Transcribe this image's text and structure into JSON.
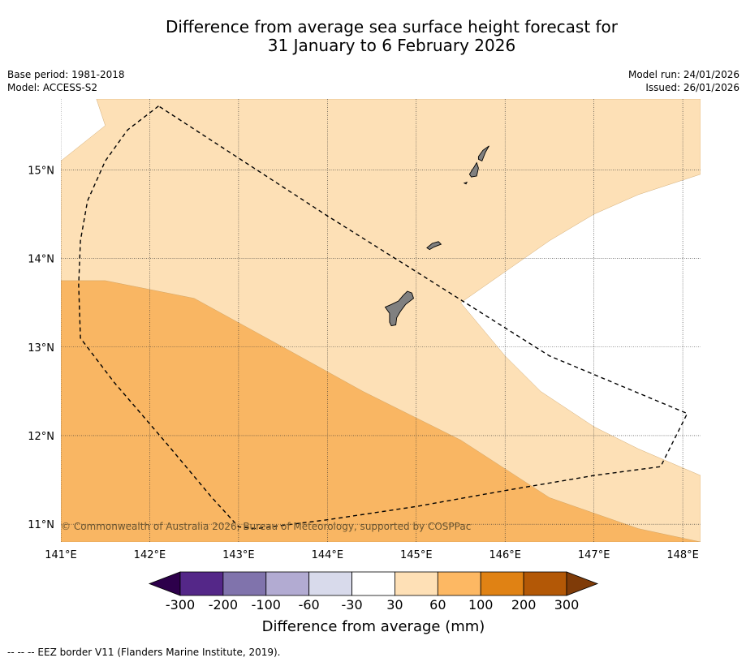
{
  "title": {
    "line1": "Difference from average sea surface height forecast for",
    "line2": "31 January to 6 February 2026"
  },
  "meta_left": {
    "base_period": "Base period: 1981-2018",
    "model": "Model: ACCESS-S2"
  },
  "meta_right": {
    "model_run": "Model run: 24/01/2026",
    "issued": "Issued: 26/01/2026"
  },
  "map": {
    "lon_range": [
      141.0,
      148.2
    ],
    "lat_range": [
      10.8,
      15.8
    ],
    "lat_ticks": [
      {
        "value": 15,
        "label": "15°N"
      },
      {
        "value": 14,
        "label": "14°N"
      },
      {
        "value": 13,
        "label": "13°N"
      },
      {
        "value": 12,
        "label": "12°N"
      },
      {
        "value": 11,
        "label": "11°N"
      }
    ],
    "lon_ticks": [
      {
        "value": 141,
        "label": "141°E"
      },
      {
        "value": 142,
        "label": "142°E"
      },
      {
        "value": 143,
        "label": "143°E"
      },
      {
        "value": 144,
        "label": "144°E"
      },
      {
        "value": 145,
        "label": "145°E"
      },
      {
        "value": 146,
        "label": "146°E"
      },
      {
        "value": 147,
        "label": "147°E"
      },
      {
        "value": 148,
        "label": "148°E"
      }
    ],
    "regions": [
      {
        "name": "anomaly-30-to-60mm-region",
        "color": "#fde0b6",
        "points": [
          [
            141.0,
            15.1
          ],
          [
            141.5,
            15.5
          ],
          [
            141.4,
            15.8
          ],
          [
            148.2,
            15.8
          ],
          [
            148.2,
            14.95
          ],
          [
            147.5,
            14.72
          ],
          [
            147.0,
            14.5
          ],
          [
            146.5,
            14.2
          ],
          [
            145.5,
            13.5
          ],
          [
            146.0,
            12.9
          ],
          [
            146.4,
            12.5
          ],
          [
            147.0,
            12.1
          ],
          [
            147.5,
            11.85
          ],
          [
            148.2,
            11.55
          ],
          [
            148.2,
            10.8
          ],
          [
            141.0,
            10.8
          ]
        ]
      },
      {
        "name": "anomaly-60-to-100mm-region",
        "color": "#f9b663",
        "points": [
          [
            141.0,
            13.75
          ],
          [
            141.5,
            13.75
          ],
          [
            142.5,
            13.55
          ],
          [
            143.5,
            13.0
          ],
          [
            144.4,
            12.5
          ],
          [
            145.5,
            11.95
          ],
          [
            146.5,
            11.3
          ],
          [
            147.5,
            10.95
          ],
          [
            148.2,
            10.8
          ],
          [
            141.0,
            10.8
          ]
        ]
      }
    ],
    "islands": [
      {
        "name": "guam-island",
        "points": [
          [
            144.65,
            13.45
          ],
          [
            144.72,
            13.48
          ],
          [
            144.8,
            13.52
          ],
          [
            144.85,
            13.58
          ],
          [
            144.9,
            13.63
          ],
          [
            144.95,
            13.61
          ],
          [
            144.97,
            13.55
          ],
          [
            144.88,
            13.48
          ],
          [
            144.82,
            13.4
          ],
          [
            144.78,
            13.33
          ],
          [
            144.77,
            13.25
          ],
          [
            144.72,
            13.24
          ],
          [
            144.7,
            13.28
          ],
          [
            144.7,
            13.38
          ]
        ]
      },
      {
        "name": "rota-island",
        "points": [
          [
            145.12,
            14.12
          ],
          [
            145.18,
            14.17
          ],
          [
            145.25,
            14.19
          ],
          [
            145.28,
            14.16
          ],
          [
            145.2,
            14.13
          ],
          [
            145.15,
            14.1
          ]
        ]
      },
      {
        "name": "tinian-island",
        "points": [
          [
            145.6,
            14.95
          ],
          [
            145.65,
            15.03
          ],
          [
            145.68,
            15.08
          ],
          [
            145.7,
            15.02
          ],
          [
            145.68,
            14.93
          ],
          [
            145.62,
            14.92
          ]
        ]
      },
      {
        "name": "saipan-island",
        "points": [
          [
            145.7,
            15.15
          ],
          [
            145.75,
            15.22
          ],
          [
            145.82,
            15.27
          ],
          [
            145.78,
            15.2
          ],
          [
            145.74,
            15.1
          ],
          [
            145.7,
            15.12
          ]
        ]
      },
      {
        "name": "aguijan-islet",
        "points": [
          [
            145.54,
            14.85
          ],
          [
            145.57,
            14.86
          ],
          [
            145.56,
            14.84
          ]
        ]
      }
    ],
    "eez_border": [
      [
        142.1,
        15.72
      ],
      [
        141.75,
        15.45
      ],
      [
        141.5,
        15.1
      ],
      [
        141.3,
        14.65
      ],
      [
        141.22,
        14.2
      ],
      [
        141.2,
        13.7
      ],
      [
        141.22,
        13.1
      ],
      [
        141.6,
        12.6
      ],
      [
        142.2,
        11.9
      ],
      [
        142.7,
        11.3
      ],
      [
        143.0,
        10.97
      ],
      [
        143.2,
        10.95
      ],
      [
        144.0,
        11.05
      ],
      [
        145.0,
        11.2
      ],
      [
        146.0,
        11.38
      ],
      [
        147.0,
        11.55
      ],
      [
        147.75,
        11.65
      ],
      [
        148.05,
        12.25
      ],
      [
        146.5,
        12.9
      ],
      [
        145.0,
        13.85
      ],
      [
        144.0,
        14.48
      ],
      [
        142.1,
        15.72
      ]
    ]
  },
  "copyright": "© Commonwealth of Australia 2026, Bureau of Meteorology, supported by COSPPac",
  "colorbar": {
    "title": "Difference from average (mm)",
    "colors": [
      "#2d004b",
      "#542788",
      "#8073ac",
      "#b2abd2",
      "#d8daeb",
      "#ffffff",
      "#fee0b6",
      "#fdb863",
      "#e08214",
      "#b35806",
      "#7f3b08"
    ],
    "labels": [
      "-300",
      "-200",
      "-100",
      "-60",
      "-30",
      "30",
      "60",
      "100",
      "200",
      "300"
    ]
  },
  "footnote": "--  --  -- EEZ border V11 (Flanders Marine Institute, 2019)."
}
